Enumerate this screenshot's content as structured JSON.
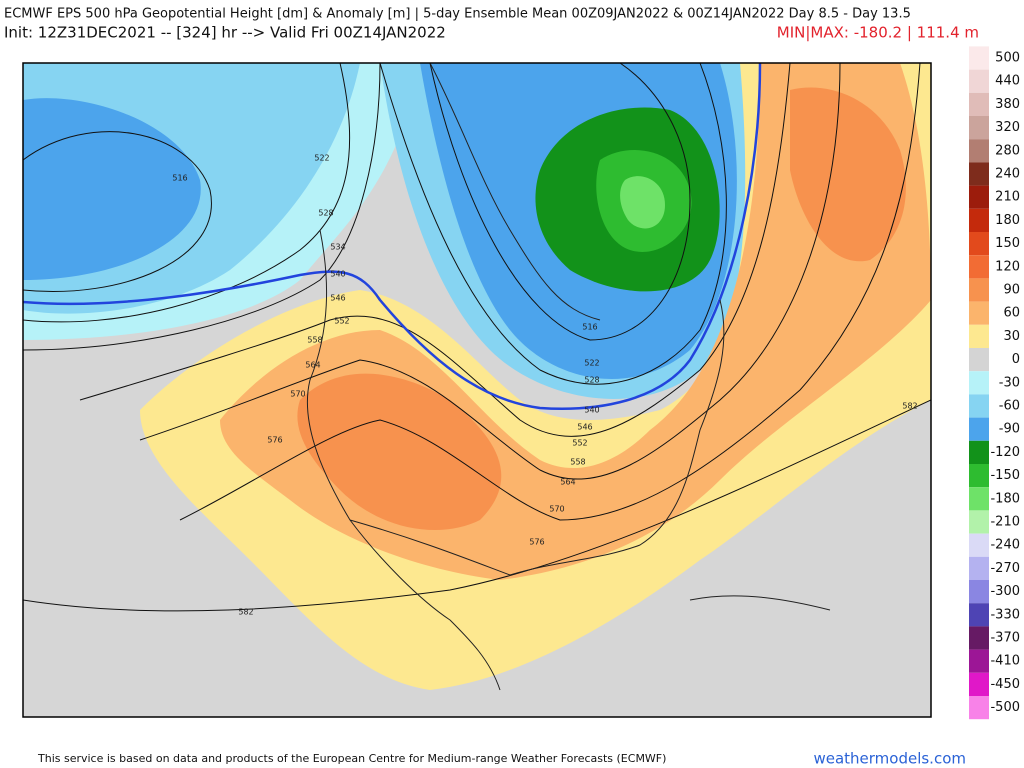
{
  "header": {
    "title": "ECMWF EPS 500 hPa Geopotential Height [dm] & Anomaly [m] | 5-day Ensemble Mean 00Z09JAN2022 & 00Z14JAN2022  Day 8.5 - Day 13.5",
    "init": "Init: 12Z31DEC2021 -- [324] hr --> Valid Fri 00Z14JAN2022",
    "minmax": "MIN|MAX: -180.2 | 111.4 m"
  },
  "legend": {
    "labels": [
      500,
      440,
      380,
      320,
      280,
      240,
      210,
      180,
      150,
      120,
      90,
      60,
      30,
      0,
      -30,
      -60,
      -90,
      -120,
      -150,
      -180,
      -210,
      -240,
      -270,
      -300,
      -330,
      -370,
      -410,
      -450,
      -500
    ],
    "colors": [
      "#fbe9ea",
      "#f0d6d6",
      "#e0bcb8",
      "#cba49c",
      "#b27e72",
      "#7e2c1c",
      "#9c1c0c",
      "#c42a0c",
      "#e24a1c",
      "#f26c34",
      "#f7924e",
      "#fbb46c",
      "#fde890",
      "#d4d4d4",
      "#b6f2f8",
      "#86d4f2",
      "#4ca4ec",
      "#12921a",
      "#2ebc30",
      "#6ee268",
      "#b2f2aa",
      "#dadaf6",
      "#b4b2f0",
      "#8a86e2",
      "#4e44b4",
      "#661a64",
      "#9c1696",
      "#e018c8",
      "#f882e8"
    ]
  },
  "contour_labels": [
    516,
    522,
    528,
    534,
    540,
    546,
    552,
    558,
    564,
    570,
    576,
    582,
    516,
    522,
    528,
    540,
    546,
    552,
    558,
    564,
    570,
    576,
    582
  ],
  "footer": {
    "credit": "This service is based on data and products of the European Centre for Medium-range Weather Forecasts (ECMWF)",
    "site": "weathermodels.com"
  }
}
